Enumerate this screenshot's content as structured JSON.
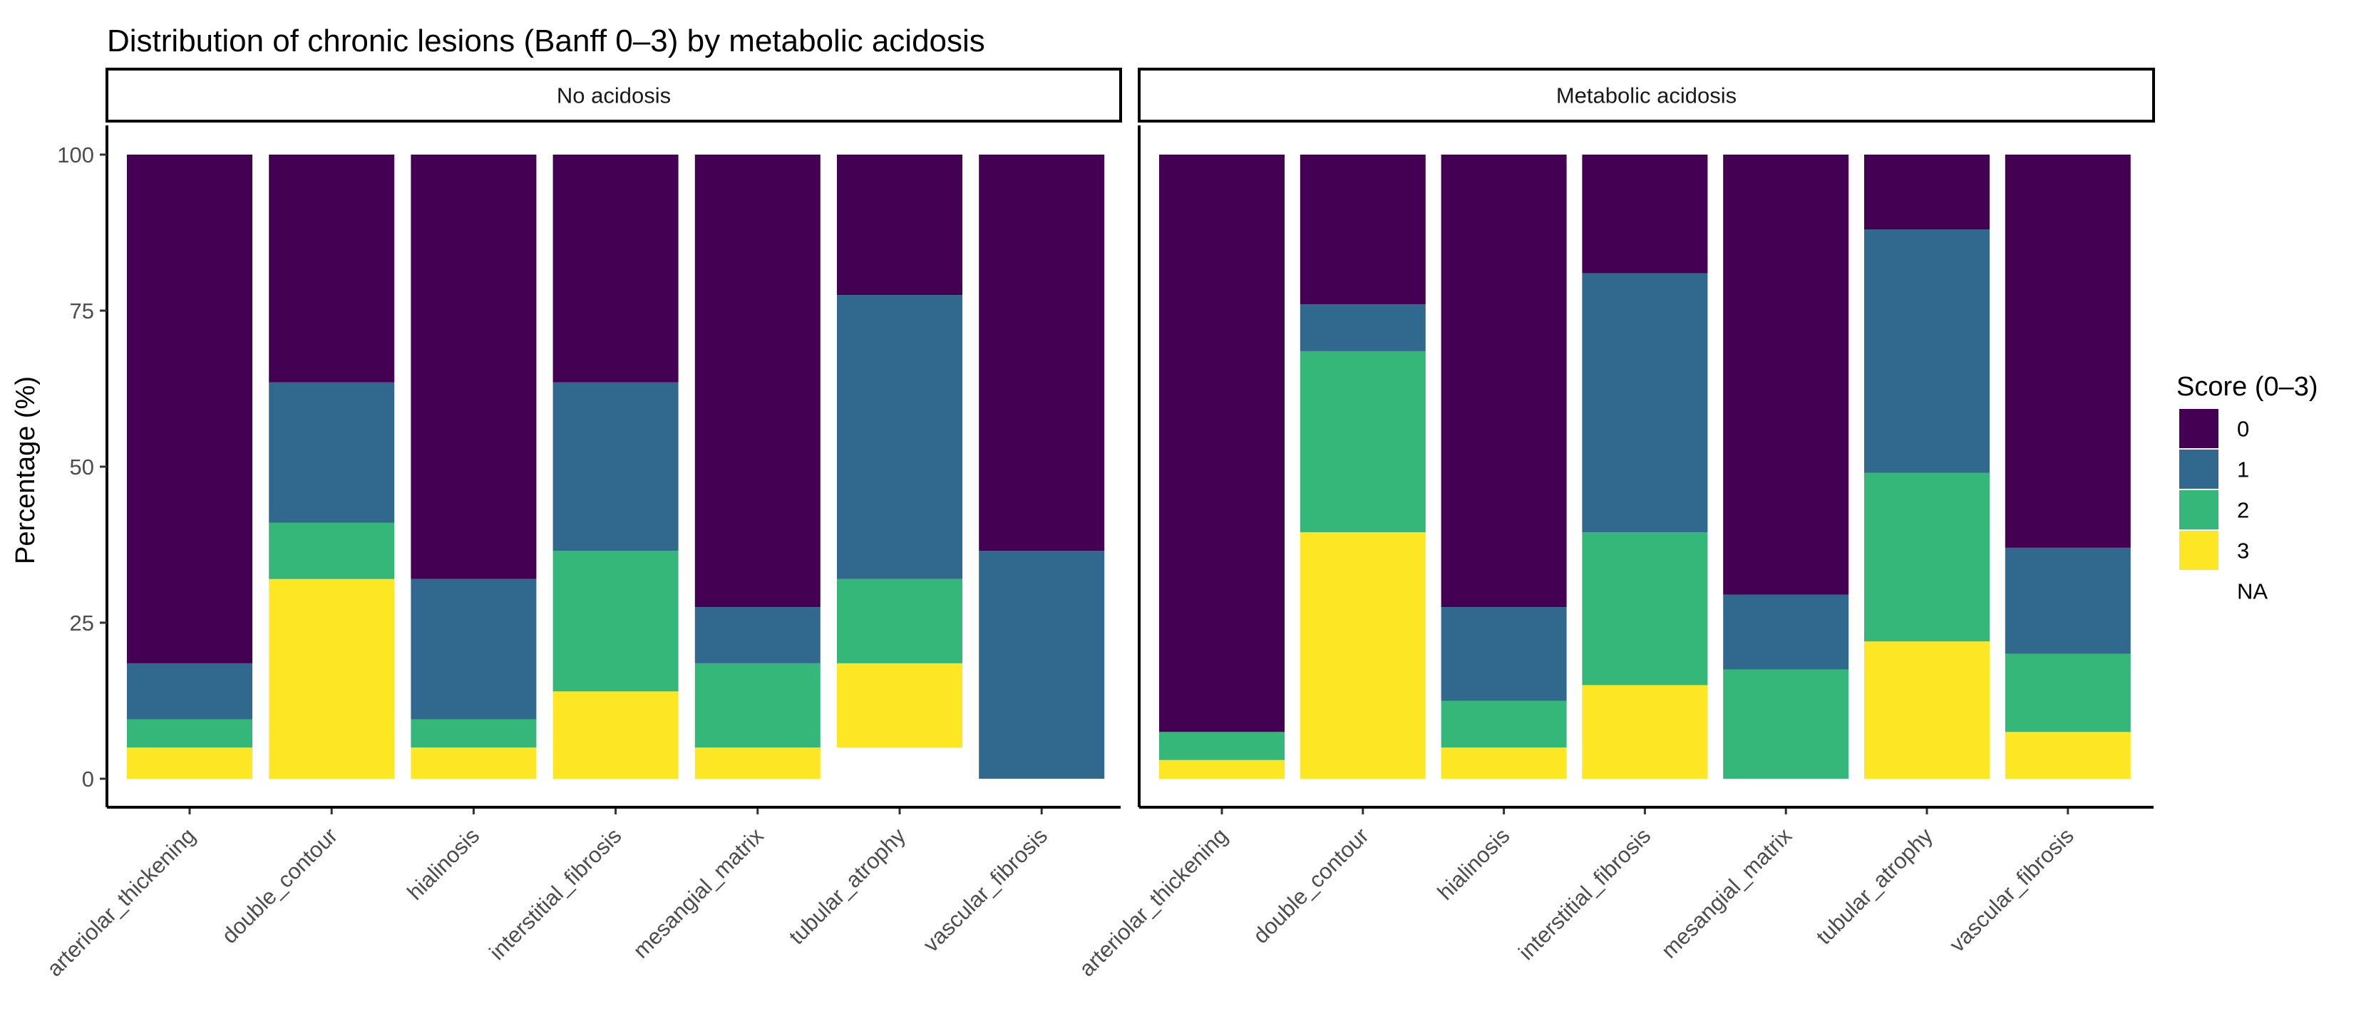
{
  "chart_data": {
    "type": "stacked-bar",
    "title": "Distribution of chronic lesions (Banff 0–3) by metabolic acidosis",
    "ylabel": "Percentage (%)",
    "xlabel": "",
    "ylim": [
      0,
      100
    ],
    "yticks": [
      0,
      25,
      50,
      75,
      100
    ],
    "grid": false,
    "categories": [
      "arteriolar_thickening",
      "double_contour",
      "hialinosis",
      "interstitial_fibrosis",
      "mesangial_matrix",
      "tubular_atrophy",
      "vascular_fibrosis"
    ],
    "legend": {
      "title": "Score (0–3)",
      "position": "right",
      "entries": [
        {
          "label": "0",
          "color": "#440154"
        },
        {
          "label": "1",
          "color": "#31688E"
        },
        {
          "label": "2",
          "color": "#35B779"
        },
        {
          "label": "3",
          "color": "#FDE725"
        },
        {
          "label": "NA",
          "color": "#FFFFFF"
        }
      ]
    },
    "stack_order_bottom_to_top": [
      "NA",
      "3",
      "2",
      "1",
      "0"
    ],
    "panels": [
      {
        "name": "No acidosis",
        "series": [
          {
            "name": "NA",
            "values": [
              0,
              0,
              0,
              0,
              0,
              5,
              0
            ]
          },
          {
            "name": "3",
            "values": [
              5,
              32,
              5,
              14,
              5,
              13.5,
              0
            ]
          },
          {
            "name": "2",
            "values": [
              4.5,
              9,
              4.5,
              22.5,
              13.5,
              13.5,
              0
            ]
          },
          {
            "name": "1",
            "values": [
              9,
              22.5,
              22.5,
              27,
              9,
              45.5,
              36.5
            ]
          },
          {
            "name": "0",
            "values": [
              81.5,
              36.5,
              68,
              36.5,
              72.5,
              22.5,
              63.5
            ]
          }
        ]
      },
      {
        "name": "Metabolic acidosis",
        "series": [
          {
            "name": "NA",
            "values": [
              0,
              0,
              0,
              0,
              0,
              0,
              0
            ]
          },
          {
            "name": "3",
            "values": [
              3,
              39.5,
              5,
              15,
              0,
              22,
              7.5
            ]
          },
          {
            "name": "2",
            "values": [
              4.5,
              29,
              7.5,
              24.5,
              17.5,
              27,
              12.5
            ]
          },
          {
            "name": "1",
            "values": [
              0,
              7.5,
              15,
              41.5,
              12,
              39,
              17
            ]
          },
          {
            "name": "0",
            "values": [
              92.5,
              24,
              72.5,
              19,
              70.5,
              12,
              63
            ]
          }
        ]
      }
    ]
  }
}
